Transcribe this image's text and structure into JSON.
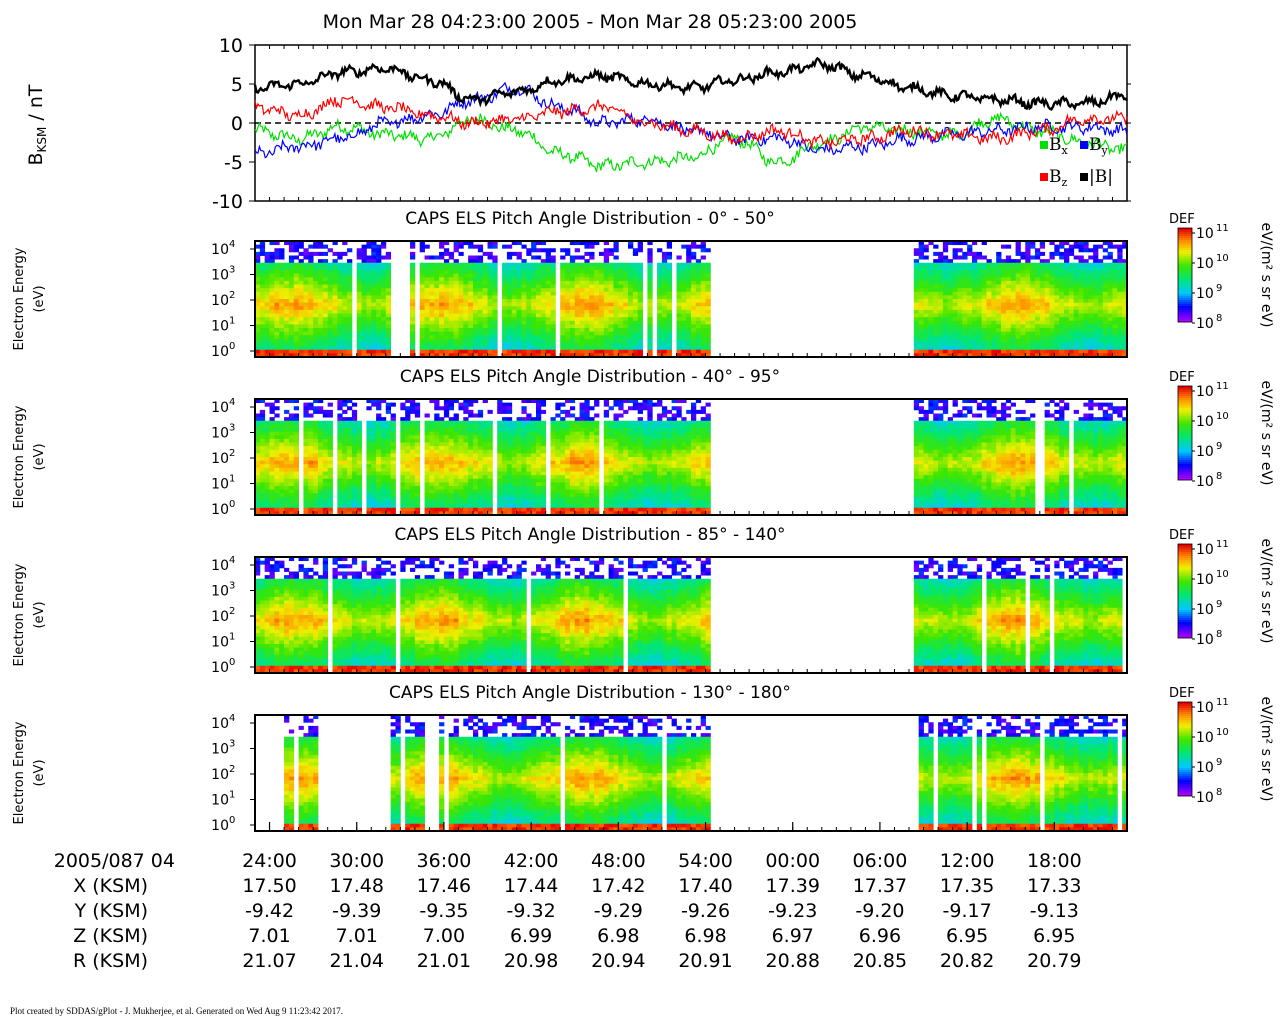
{
  "page": {
    "title": "Mon Mar 28 04:23:00 2005 - Mon Mar 28 05:23:00 2005",
    "footer": "Plot created by SDDAS/gPlot - J. Mukherjee, et al.  Generated on Wed Aug 9 11:23:42 2017."
  },
  "chart_data": [
    {
      "type": "line",
      "ylabel_main": "B",
      "ylabel_sub": "KSM",
      "ylabel_unit": " / nT",
      "ylim": [
        -10,
        10
      ],
      "yticks": [
        "10",
        "5",
        "0",
        "-5",
        "-10"
      ],
      "ytick_values": [
        10,
        5,
        0,
        -5,
        -10
      ],
      "xlim_minutes": [
        0,
        60
      ],
      "zero_line": true,
      "series": [
        {
          "name": "B",
          "sub": "x",
          "color": "#00e000",
          "x": [
            0,
            3,
            6,
            9,
            12,
            15,
            18,
            21,
            24,
            27,
            30,
            33,
            36,
            39,
            42,
            45,
            48,
            51,
            54,
            57,
            60
          ],
          "values": [
            -1,
            -2,
            -0.5,
            -1.5,
            -2,
            0.5,
            -1,
            -4,
            -5.5,
            -5,
            -4.5,
            -2,
            -5,
            -2.5,
            -0.5,
            -1,
            -1.5,
            0.5,
            -1,
            -2.5,
            -3.5
          ]
        },
        {
          "name": "B",
          "sub": "y",
          "color": "#0000ff",
          "x": [
            0,
            3,
            6,
            9,
            12,
            15,
            18,
            21,
            24,
            27,
            30,
            33,
            36,
            39,
            42,
            45,
            48,
            51,
            54,
            57,
            60
          ],
          "values": [
            -4,
            -3,
            -2,
            0,
            1,
            3,
            4.5,
            2,
            0,
            0.5,
            -1,
            -2,
            -2,
            -3.5,
            -3,
            -2,
            -1.5,
            -1,
            -0.5,
            -0.5,
            -1
          ]
        },
        {
          "name": "B",
          "sub": "z",
          "color": "#ff0000",
          "x": [
            0,
            3,
            6,
            9,
            12,
            15,
            18,
            21,
            24,
            27,
            30,
            33,
            36,
            39,
            42,
            45,
            48,
            51,
            54,
            57,
            60
          ],
          "values": [
            2,
            1,
            3,
            2,
            1,
            0,
            0.5,
            1.5,
            2,
            0,
            -1,
            -2,
            -1,
            -2.5,
            -2,
            -1,
            -1.5,
            -2,
            -1,
            0.5,
            0.5
          ]
        },
        {
          "name": "|B|",
          "sub": "",
          "color": "#000000",
          "x": [
            0,
            3,
            6,
            9,
            12,
            15,
            18,
            21,
            24,
            27,
            30,
            33,
            36,
            39,
            42,
            45,
            48,
            51,
            54,
            57,
            60
          ],
          "values": [
            4.5,
            5,
            6.5,
            7,
            5.5,
            3,
            4,
            5.5,
            6,
            5,
            4.5,
            5.5,
            6.5,
            7.5,
            6,
            4.5,
            3.5,
            3,
            2.5,
            2.5,
            3.5
          ]
        }
      ]
    },
    {
      "type": "heatmap",
      "title": "CAPS ELS Pitch Angle Distribution - 0° - 50°",
      "ylabel_line1": "Electron Energy",
      "ylabel_line2": "(eV)",
      "yticks_exp": [
        "4",
        "3",
        "2",
        "1",
        "0"
      ],
      "colorbar_label": "DEF",
      "colorbar_unit": "eV/(m² s sr eV)",
      "colorbar_exp": [
        "11",
        "10",
        "9",
        "8"
      ],
      "data_gaps_minutes": [
        [
          31.2,
          45.3
        ],
        [
          9.3,
          9.6
        ],
        [
          9.8,
          10.7
        ],
        [
          10.9,
          11.3
        ]
      ],
      "peak_energy_log10": 2.0
    },
    {
      "type": "heatmap",
      "title": "CAPS ELS Pitch Angle Distribution - 40° - 95°",
      "ylabel_line1": "Electron Energy",
      "ylabel_line2": "(eV)",
      "yticks_exp": [
        "4",
        "3",
        "2",
        "1",
        "0"
      ],
      "colorbar_label": "DEF",
      "colorbar_unit": "eV/(m² s sr eV)",
      "colorbar_exp": [
        "11",
        "10",
        "9",
        "8"
      ],
      "data_gaps_minutes": [
        [
          31.2,
          45.2
        ]
      ],
      "peak_energy_log10": 2.0
    },
    {
      "type": "heatmap",
      "title": "CAPS ELS Pitch Angle Distribution - 85° - 140°",
      "ylabel_line1": "Electron Energy",
      "ylabel_line2": "(eV)",
      "yticks_exp": [
        "4",
        "3",
        "2",
        "1",
        "0"
      ],
      "colorbar_label": "DEF",
      "colorbar_unit": "eV/(m² s sr eV)",
      "colorbar_exp": [
        "11",
        "10",
        "9",
        "8"
      ],
      "data_gaps_minutes": [
        [
          31.2,
          45.2
        ]
      ],
      "peak_energy_log10": 2.0
    },
    {
      "type": "heatmap",
      "title": "CAPS ELS Pitch Angle Distribution - 130° - 180°",
      "ylabel_line1": "Electron Energy",
      "ylabel_line2": "(eV)",
      "yticks_exp": [
        "4",
        "3",
        "2",
        "1",
        "0"
      ],
      "colorbar_label": "DEF",
      "colorbar_unit": "eV/(m² s sr eV)",
      "colorbar_exp": [
        "11",
        "10",
        "9",
        "8"
      ],
      "data_gaps_minutes": [
        [
          0,
          1.9
        ],
        [
          4.2,
          9.2
        ],
        [
          11.6,
          12.6
        ],
        [
          31.2,
          45.3
        ]
      ],
      "peak_energy_log10": 2.0
    }
  ],
  "ephemeris": {
    "rows": [
      {
        "label": "2005/087 04",
        "values": [
          "24:00",
          "30:00",
          "36:00",
          "42:00",
          "48:00",
          "54:00",
          "00:00",
          "06:00",
          "12:00",
          "18:00"
        ]
      },
      {
        "label": "X (KSM)",
        "values": [
          "17.50",
          "17.48",
          "17.46",
          "17.44",
          "17.42",
          "17.40",
          "17.39",
          "17.37",
          "17.35",
          "17.33"
        ]
      },
      {
        "label": "Y (KSM)",
        "values": [
          "-9.42",
          "-9.39",
          "-9.35",
          "-9.32",
          "-9.29",
          "-9.26",
          "-9.23",
          "-9.20",
          "-9.17",
          "-9.13"
        ]
      },
      {
        "label": "Z (KSM)",
        "values": [
          "7.01",
          "7.01",
          "7.00",
          "6.99",
          "6.98",
          "6.98",
          "6.97",
          "6.96",
          "6.95",
          "6.95"
        ]
      },
      {
        "label": "R (KSM)",
        "values": [
          "21.07",
          "21.04",
          "21.01",
          "20.98",
          "20.94",
          "20.91",
          "20.88",
          "20.85",
          "20.82",
          "20.79"
        ]
      }
    ],
    "tick_minutes": [
      1,
      7,
      13,
      19,
      25,
      31,
      37,
      43,
      49,
      55
    ]
  }
}
